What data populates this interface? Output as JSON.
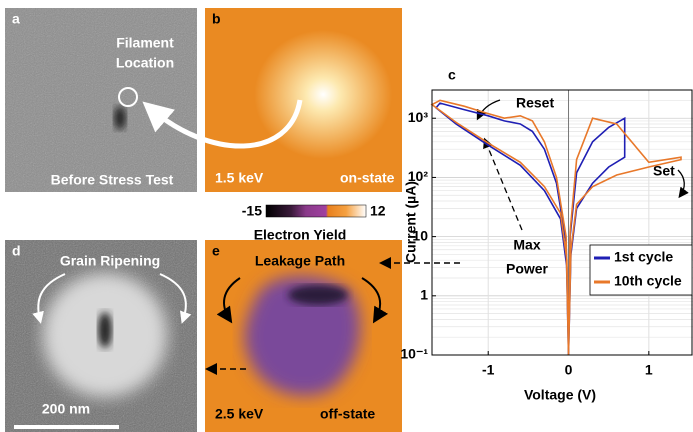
{
  "panels": {
    "a": {
      "letter": "a",
      "label_top": "Filament",
      "label_top2": "Location",
      "caption": "Before Stress Test"
    },
    "b": {
      "letter": "b",
      "energy": "1.5 keV",
      "state": "on-state"
    },
    "colorbar": {
      "min": -15,
      "max": 12,
      "label": "Electron Yield"
    },
    "d": {
      "letter": "d",
      "title": "Grain Ripening",
      "scale": "200 nm"
    },
    "e": {
      "letter": "e",
      "title": "Leakage Path",
      "energy": "2.5 keV",
      "state": "off-state"
    }
  },
  "chart_data": {
    "type": "line",
    "letter": "c",
    "x_label": "Voltage (V)",
    "y_label": "Current (µA)",
    "log_y": true,
    "grid": true,
    "legend": "right",
    "xlim": [
      -1.7,
      1.55
    ],
    "xticks": [
      -1,
      0,
      1
    ],
    "ylim": [
      0.1,
      3000
    ],
    "yticks": [
      {
        "value": 0.1,
        "label": "10⁻¹"
      },
      1,
      10,
      {
        "value": 100,
        "label": "10²"
      },
      {
        "value": 1000,
        "label": "10³"
      }
    ],
    "annotations": [
      "Reset",
      "Set",
      "Max",
      "Power"
    ],
    "series": [
      {
        "name": "1st cycle",
        "color": "#1f1fb4",
        "x": [
          0,
          -0.02,
          -0.1,
          -0.3,
          -0.6,
          -1.0,
          -1.4,
          -1.65,
          -1.6,
          -1.3,
          -1.0,
          -0.8,
          -0.6,
          -0.45,
          -0.3,
          -0.15,
          -0.03,
          0,
          0.03,
          0.1,
          0.3,
          0.5,
          0.7,
          0.7,
          0.5,
          0.3,
          0.1,
          0.02,
          0
        ],
        "values": [
          0.1,
          3,
          20,
          60,
          160,
          350,
          800,
          1500,
          1800,
          1400,
          1100,
          900,
          800,
          600,
          300,
          80,
          8,
          0.1,
          5,
          30,
          80,
          150,
          220,
          1000,
          700,
          400,
          120,
          10,
          0.1
        ]
      },
      {
        "name": "10th cycle",
        "color": "#e8782a",
        "x": [
          0,
          -0.02,
          -0.1,
          -0.3,
          -0.6,
          -1.0,
          -1.4,
          -1.7,
          -1.6,
          -1.3,
          -1.0,
          -0.8,
          -0.6,
          -0.45,
          -0.3,
          -0.15,
          -0.03,
          0,
          0.03,
          0.1,
          0.3,
          0.6,
          1.0,
          1.4,
          1.4,
          1.0,
          0.6,
          0.3,
          0.1,
          0.02,
          0
        ],
        "values": [
          0.1,
          4,
          25,
          70,
          180,
          380,
          850,
          1700,
          2000,
          1600,
          1200,
          1000,
          1100,
          900,
          400,
          100,
          10,
          0.1,
          6,
          35,
          70,
          110,
          150,
          200,
          220,
          180,
          800,
          1000,
          200,
          12,
          0.1
        ]
      }
    ]
  }
}
